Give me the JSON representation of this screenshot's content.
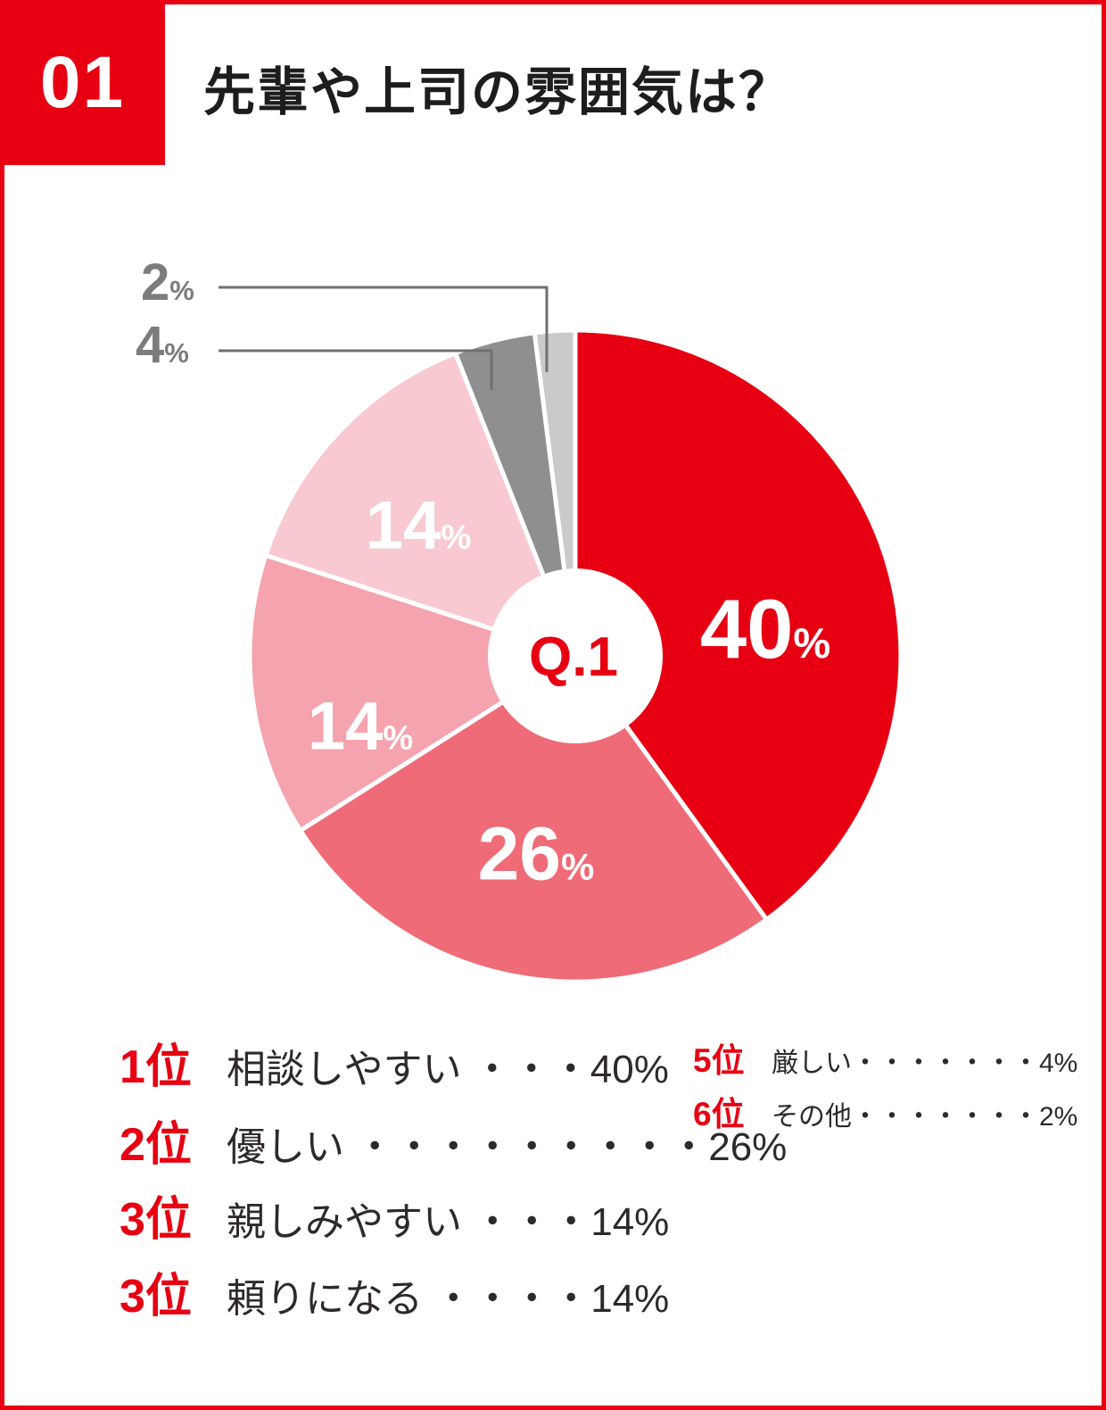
{
  "frame": {
    "border_color": "#e60012"
  },
  "header": {
    "number": "01",
    "title": "先輩や上司の雰囲気は？"
  },
  "percent_sign": "%",
  "chart_data": {
    "type": "pie",
    "donut": true,
    "title": "先輩や上司の雰囲気は？",
    "center_label": "Q.1",
    "unit": "%",
    "direction": "clockwise",
    "start_angle_deg": 0,
    "slices": [
      {
        "label": "相談しやすい",
        "value": 40,
        "color": "#e60012"
      },
      {
        "label": "優しい",
        "value": 26,
        "color": "#ef6b77"
      },
      {
        "label": "親しみやすい",
        "value": 14,
        "color": "#f5a3ae"
      },
      {
        "label": "頼りになる",
        "value": 14,
        "color": "#f8c9d1"
      },
      {
        "label": "厳しい",
        "value": 4,
        "color": "#8f8f8f"
      },
      {
        "label": "その他",
        "value": 2,
        "color": "#c9caca"
      }
    ],
    "callout_labels": [
      {
        "value": "2",
        "slice_index": 5
      },
      {
        "value": "4",
        "slice_index": 4
      }
    ],
    "label_color_inside": "#ffffff",
    "center_label_color": "#e60012"
  },
  "legend": {
    "left": [
      {
        "rank": "1位",
        "text": "相談しやすい ・・・40%"
      },
      {
        "rank": "2位",
        "text": "優しい ・・・・・・・・・26%"
      },
      {
        "rank": "3位",
        "text": "親しみやすい ・・・14%"
      },
      {
        "rank": "3位",
        "text": "頼りになる ・・・・14%"
      }
    ],
    "right": [
      {
        "rank": "5位",
        "text": "厳しい・・・・・・・4%"
      },
      {
        "rank": "6位",
        "text": "その他・・・・・・・2%"
      }
    ]
  },
  "colors": {
    "accent_red": "#e60012",
    "callout_line_gray": "#6e6f6f",
    "callout_text_gray": "#7b7c7c",
    "legend_text_dark": "#2e2a2a",
    "title_dark": "#1d1d1d"
  }
}
